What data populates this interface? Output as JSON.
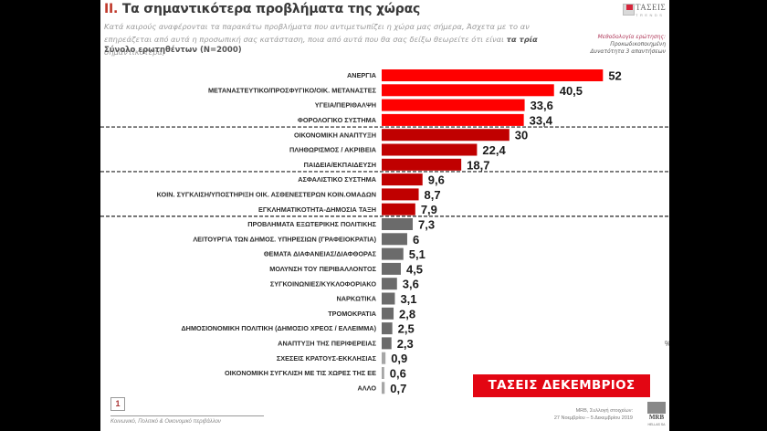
{
  "header": {
    "section_number": "II.",
    "title": "Τα σημαντικότερα προβλήματα της χώρας",
    "question_part1": "Κατά καιρούς αναφέρονται τα παρακάτω προβλήματα που αντιμετωπίζει η χώρα μας σήμερα, Άσχετα με το αν επηρεάζεται από αυτά η προσωπική σας κατάσταση, ποια από αυτά που θα σας δείξω θεωρείτε ότι είναι ",
    "question_bold": "τα τρία",
    "question_part2": " σημαντικότερα;",
    "base": "Σύνολο ερωτηθέντων (Ν=2000)"
  },
  "logo": {
    "name": "ΤΑΣΕΙΣ",
    "sub": "TRENDS"
  },
  "methodology": {
    "heading": "Μεθοδολογία ερώτησης:",
    "line1": "Προκωδικοποιημένη",
    "line2": "Δυνατότητα 3 απαντήσεων"
  },
  "chart_data": {
    "type": "bar",
    "orientation": "horizontal",
    "unit": "%",
    "title": "Τα σημαντικότερα προβλήματα της χώρας",
    "xlabel": "",
    "ylabel": "",
    "xlim": [
      0,
      52
    ],
    "grid": false,
    "colors": {
      "top": "#ff0000",
      "mid": "#c00000",
      "low": "#6b6b6b",
      "minor": "#a6a6a6"
    },
    "categories": [
      "ΑΝΕΡΓΙΑ",
      "ΜΕΤΑΝΑΣΤΕΥΤΙΚΟ/ΠΡΟΣΦΥΓΙΚΟ/ΟΙΚ. ΜΕΤΑΝΑΣΤΕΣ",
      "ΥΓΕΙΑ/ΠΕΡΙΘΑΛΨΗ",
      "ΦΟΡΟΛΟΓΙΚΟ ΣΥΣΤΗΜΑ",
      "ΟΙΚΟΝΟΜΙΚΗ ΑΝΑΠΤΥΞΗ",
      "ΠΛΗΘΩΡΙΣΜΟΣ / ΑΚΡΙΒΕΙΑ",
      "ΠΑΙΔΕΙΑ/ΕΚΠΑΙΔΕΥΣΗ",
      "ΑΣΦΑΛΙΣΤΙΚΟ ΣΥΣΤΗΜΑ",
      "ΚΟΙΝ. ΣΥΓΚΛΙΣΗ/ΥΠΟΣΤΗΡΙΞΗ ΟΙΚ. ΑΣΘΕΝΕΣΤΕΡΩΝ ΚΟΙΝ.ΟΜΑΔΩΝ",
      "ΕΓΚΛΗΜΑΤΙΚΟΤΗΤΑ-ΔΗΜΟΣΙΑ ΤΑΞΗ",
      "ΠΡΟΒΛΗΜΑΤΑ ΕΞΩΤΕΡΙΚΗΣ ΠΟΛΙΤΙΚΗΣ",
      "ΛΕΙΤΟΥΡΓΙΑ ΤΩΝ ΔΗΜΟΣ. ΥΠΗΡΕΣΙΩΝ (ΓΡΑΦΕΙΟΚΡΑΤΙΑ)",
      "ΘΕΜΑΤΑ ΔΙΑΦΑΝΕΙΑΣ/ΔΙΑΦΘΟΡΑΣ",
      "ΜΟΛΥΝΣΗ ΤΟΥ ΠΕΡΙΒΑΛΛΟΝΤΟΣ",
      "ΣΥΓΚΟΙΝΩΝΙΕΣ/ΚΥΚΛΟΦΟΡΙΑΚΟ",
      "ΝΑΡΚΩΤΙΚΑ",
      "ΤΡΟΜΟΚΡΑΤΙΑ",
      "ΔΗΜΟΣΙΟΝΟΜΙΚΗ ΠΟΛΙΤΙΚΗ (ΔΗΜΟΣΙΟ ΧΡΕΟΣ / ΕΛΛΕΙΜΜΑ)",
      "ΑΝΑΠΤΥΞΗ ΤΗΣ ΠΕΡΙΦΕΡΕΙΑΣ",
      "ΣΧΕΣΕΙΣ ΚΡΑΤΟΥΣ-ΕΚΚΛΗΣΙΑΣ",
      "ΟΙΚΟΝΟΜΙΚΗ ΣΥΓΚΛΙΣΗ ΜΕ ΤΙΣ ΧΩΡΕΣ ΤΗΣ ΕΕ",
      "ΑΛΛΟ"
    ],
    "values": [
      52,
      40.5,
      33.6,
      33.4,
      30,
      22.4,
      18.7,
      9.6,
      8.7,
      7.9,
      7.3,
      6,
      5.1,
      4.5,
      3.6,
      3.1,
      2.8,
      2.5,
      2.3,
      0.9,
      0.6,
      0.7
    ],
    "value_labels": [
      "52",
      "40,5",
      "33,6",
      "33,4",
      "30",
      "22,4",
      "18,7",
      "9,6",
      "8,7",
      "7,9",
      "7,3",
      "6",
      "5,1",
      "4,5",
      "3,6",
      "3,1",
      "2,8",
      "2,5",
      "2,3",
      "0,9",
      "0,6",
      "0,7"
    ],
    "groups": [
      "top",
      "top",
      "top",
      "top",
      "mid",
      "mid",
      "mid",
      "mid",
      "mid",
      "mid",
      "low",
      "low",
      "low",
      "low",
      "low",
      "low",
      "low",
      "low",
      "low",
      "minor",
      "minor",
      "minor"
    ],
    "separators_after_index": [
      3,
      6,
      9
    ]
  },
  "percent_sign": "%",
  "footer": {
    "page_number": "1",
    "section_label": "Κοινωνικό, Πολιτικό & Οικονομικό περιβάλλον",
    "banner": "ΤΑΣΕΙΣ ΔΕΚΕΜΒΡΙΟΣ 2019",
    "source_line1": "MRB, Συλλογή στοιχείων:",
    "source_line2": "27 Νοεμβρίου – 5 Δεκεμβρίου 2019",
    "mrb_logo": "MRB",
    "mrb_sub": "HELLAS SA"
  }
}
